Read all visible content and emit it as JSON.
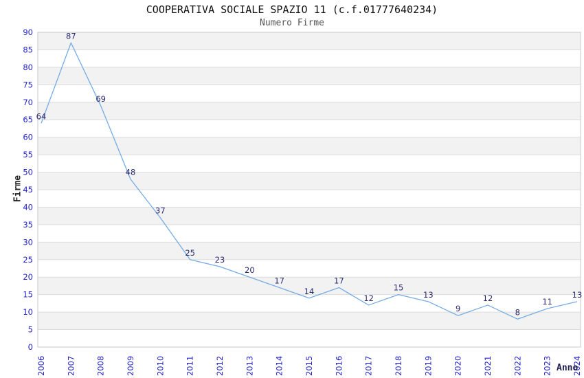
{
  "chart_data": {
    "type": "line",
    "title": "COOPERATIVA SOCIALE SPAZIO 11 (c.f.01777640234)",
    "subtitle": "Numero Firme",
    "xlabel": "Anno",
    "ylabel": "Firme",
    "categories": [
      "2006",
      "2007",
      "2008",
      "2009",
      "2010",
      "2011",
      "2012",
      "2013",
      "2014",
      "2015",
      "2016",
      "2017",
      "2018",
      "2019",
      "2020",
      "2021",
      "2022",
      "2023",
      "2024"
    ],
    "values": [
      64,
      87,
      69,
      48,
      37,
      25,
      23,
      20,
      17,
      14,
      17,
      12,
      15,
      13,
      9,
      12,
      8,
      11,
      13
    ],
    "ylim": [
      0,
      90
    ],
    "ytick_step": 5,
    "grid": "horizontal-bands",
    "legend": "none",
    "colors": {
      "line": "#74abe2",
      "point_label": "#29296e",
      "tick_label": "#2323cb",
      "band": "#f2f2f2",
      "gridline": "#dcdcdc",
      "plot_border": "#c9c9c9",
      "title": "#111111",
      "subtitle": "#555555",
      "x_axis_title": "#1c1c4e",
      "y_axis_title": "#222222"
    }
  }
}
